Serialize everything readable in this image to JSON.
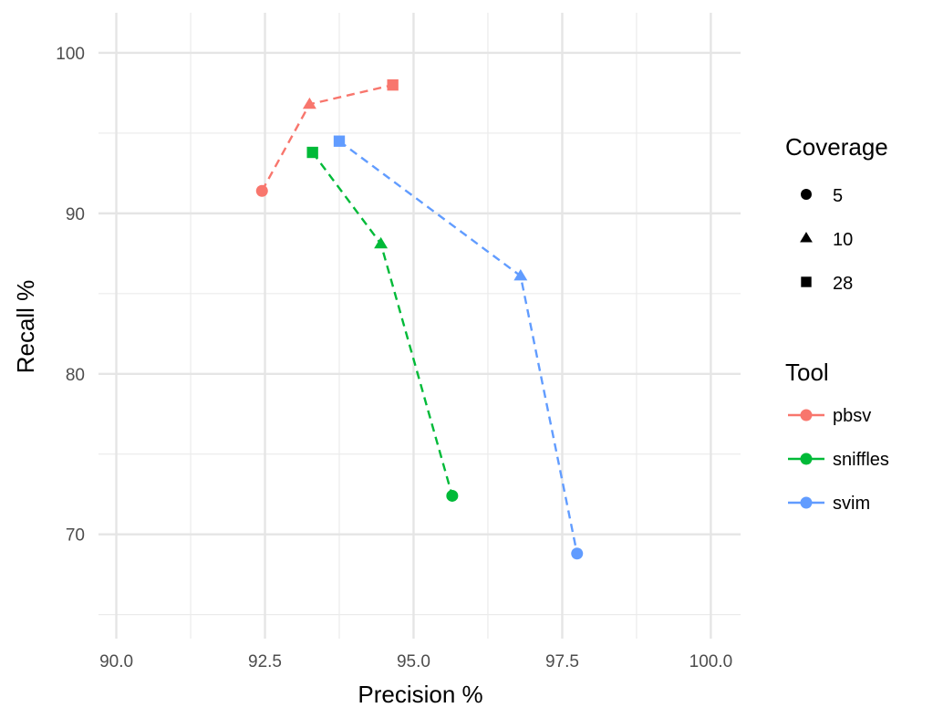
{
  "chart_data": {
    "type": "line",
    "xlabel": "Precision %",
    "ylabel": "Recall %",
    "xlim": [
      89.7,
      100.5
    ],
    "ylim": [
      63.5,
      102.5
    ],
    "x_ticks": [
      90.0,
      92.5,
      95.0,
      97.5,
      100.0
    ],
    "x_tick_labels": [
      "90.0",
      "92.5",
      "95.0",
      "97.5",
      "100.0"
    ],
    "x_minor_ticks": [
      91.25,
      93.75,
      96.25,
      98.75
    ],
    "y_ticks": [
      70,
      80,
      90,
      100
    ],
    "y_tick_labels": [
      "70",
      "80",
      "90",
      "100"
    ],
    "y_minor_ticks": [
      65,
      75,
      85,
      95
    ],
    "grid": true,
    "line_style": "dashed",
    "legend_position": "right",
    "coverage_legend": {
      "title": "Coverage",
      "items": [
        {
          "label": "5",
          "shape": "circle"
        },
        {
          "label": "10",
          "shape": "triangle"
        },
        {
          "label": "28",
          "shape": "square"
        }
      ]
    },
    "tool_legend": {
      "title": "Tool",
      "items": [
        {
          "label": "pbsv",
          "color": "#F8766D"
        },
        {
          "label": "sniffles",
          "color": "#00BA38"
        },
        {
          "label": "svim",
          "color": "#619CFF"
        }
      ]
    },
    "series": [
      {
        "name": "pbsv",
        "color": "#F8766D",
        "points": [
          {
            "coverage": "5",
            "shape": "circle",
            "x": 92.45,
            "y": 91.4
          },
          {
            "coverage": "10",
            "shape": "triangle",
            "x": 93.25,
            "y": 96.8
          },
          {
            "coverage": "28",
            "shape": "square",
            "x": 94.65,
            "y": 98.0
          }
        ]
      },
      {
        "name": "sniffles",
        "color": "#00BA38",
        "points": [
          {
            "coverage": "28",
            "shape": "square",
            "x": 93.3,
            "y": 93.8
          },
          {
            "coverage": "10",
            "shape": "triangle",
            "x": 94.45,
            "y": 88.1
          },
          {
            "coverage": "5",
            "shape": "circle",
            "x": 95.65,
            "y": 72.4
          }
        ]
      },
      {
        "name": "svim",
        "color": "#619CFF",
        "points": [
          {
            "coverage": "28",
            "shape": "square",
            "x": 93.75,
            "y": 94.5
          },
          {
            "coverage": "10",
            "shape": "triangle",
            "x": 96.8,
            "y": 86.1
          },
          {
            "coverage": "5",
            "shape": "circle",
            "x": 97.75,
            "y": 68.8
          }
        ]
      }
    ]
  }
}
